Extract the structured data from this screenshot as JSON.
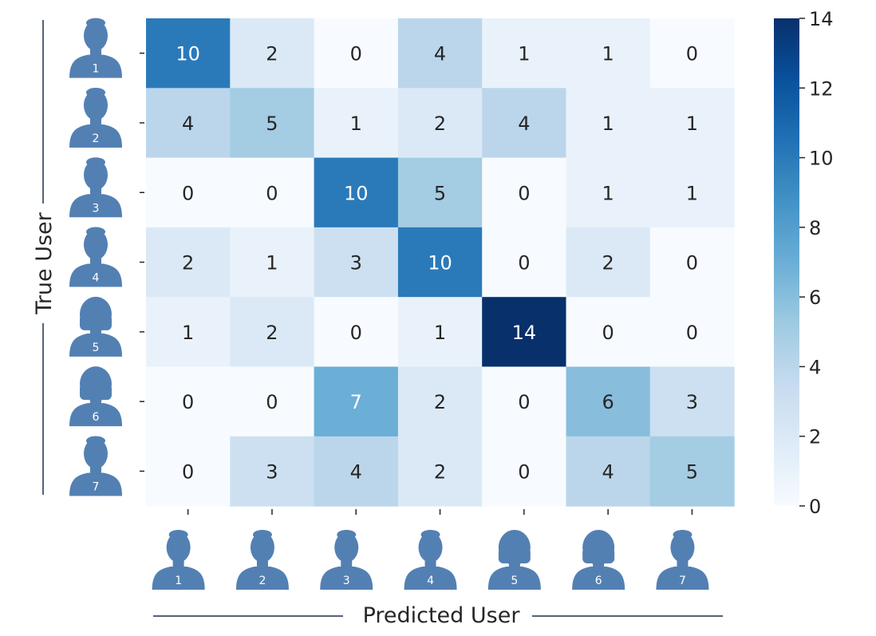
{
  "chart_data": {
    "type": "heatmap",
    "xlabel": "Predicted User",
    "ylabel": "True User",
    "row_labels": [
      "1",
      "2",
      "3",
      "4",
      "5",
      "6",
      "7"
    ],
    "col_labels": [
      "1",
      "2",
      "3",
      "4",
      "5",
      "6",
      "7"
    ],
    "values": [
      [
        10,
        2,
        0,
        4,
        1,
        1,
        0
      ],
      [
        4,
        5,
        1,
        2,
        4,
        1,
        1
      ],
      [
        0,
        0,
        10,
        5,
        0,
        1,
        1
      ],
      [
        2,
        1,
        3,
        10,
        0,
        2,
        0
      ],
      [
        1,
        2,
        0,
        1,
        14,
        0,
        0
      ],
      [
        0,
        0,
        7,
        2,
        0,
        6,
        3
      ],
      [
        0,
        3,
        4,
        2,
        0,
        4,
        5
      ]
    ],
    "colorbar": {
      "min": 0,
      "max": 14,
      "ticks": [
        0,
        2,
        4,
        6,
        8,
        10,
        12,
        14
      ]
    },
    "colormap": "Blues",
    "row_avatar_icons": [
      "user-male-icon",
      "user-male-icon",
      "user-male-icon",
      "user-male-icon",
      "user-female-icon",
      "user-female-icon",
      "user-male-icon"
    ],
    "col_avatar_icons": [
      "user-male-icon",
      "user-male-icon",
      "user-male-icon",
      "user-male-icon",
      "user-female-icon",
      "user-female-icon",
      "user-male-icon"
    ],
    "avatar_color": "#5380b3"
  }
}
